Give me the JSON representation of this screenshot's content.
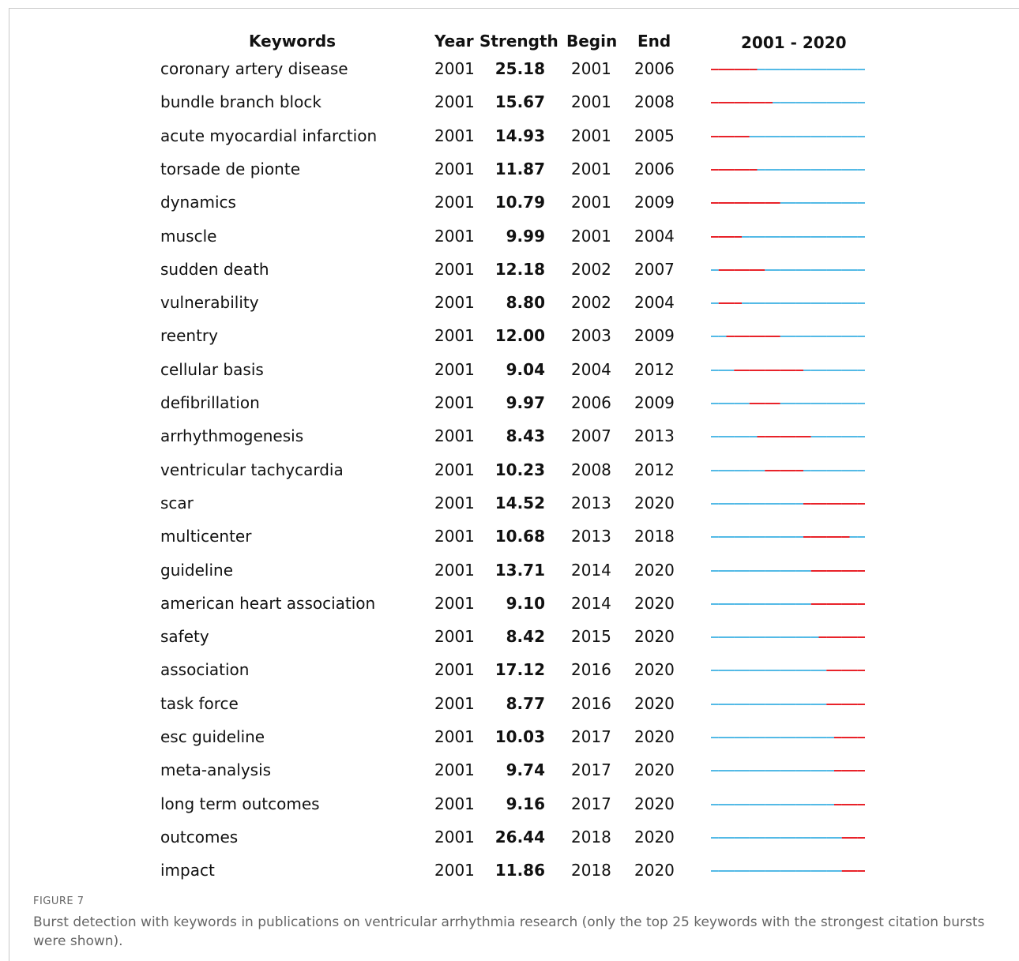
{
  "colors": {
    "burst": "#e8232a",
    "normal": "#29a8e0"
  },
  "headers": {
    "keywords": "Keywords",
    "year": "Year",
    "strength": "Strength",
    "begin": "Begin",
    "end": "End",
    "range": "2001 - 2020"
  },
  "chart_data": {
    "type": "table",
    "year_range": [
      2001,
      2020
    ],
    "rows": [
      {
        "keyword": "coronary artery disease",
        "year": "2001",
        "strength": "25.18",
        "begin": "2001",
        "end": "2006"
      },
      {
        "keyword": "bundle branch block",
        "year": "2001",
        "strength": "15.67",
        "begin": "2001",
        "end": "2008"
      },
      {
        "keyword": "acute myocardial infarction",
        "year": "2001",
        "strength": "14.93",
        "begin": "2001",
        "end": "2005"
      },
      {
        "keyword": "torsade de pionte",
        "year": "2001",
        "strength": "11.87",
        "begin": "2001",
        "end": "2006"
      },
      {
        "keyword": "dynamics",
        "year": "2001",
        "strength": "10.79",
        "begin": "2001",
        "end": "2009"
      },
      {
        "keyword": "muscle",
        "year": "2001",
        "strength": "9.99",
        "begin": "2001",
        "end": "2004"
      },
      {
        "keyword": "sudden death",
        "year": "2001",
        "strength": "12.18",
        "begin": "2002",
        "end": "2007"
      },
      {
        "keyword": "vulnerability",
        "year": "2001",
        "strength": "8.80",
        "begin": "2002",
        "end": "2004"
      },
      {
        "keyword": "reentry",
        "year": "2001",
        "strength": "12.00",
        "begin": "2003",
        "end": "2009"
      },
      {
        "keyword": "cellular basis",
        "year": "2001",
        "strength": "9.04",
        "begin": "2004",
        "end": "2012"
      },
      {
        "keyword": "defibrillation",
        "year": "2001",
        "strength": "9.97",
        "begin": "2006",
        "end": "2009"
      },
      {
        "keyword": "arrhythmogenesis",
        "year": "2001",
        "strength": "8.43",
        "begin": "2007",
        "end": "2013"
      },
      {
        "keyword": "ventricular tachycardia",
        "year": "2001",
        "strength": "10.23",
        "begin": "2008",
        "end": "2012"
      },
      {
        "keyword": "scar",
        "year": "2001",
        "strength": "14.52",
        "begin": "2013",
        "end": "2020"
      },
      {
        "keyword": "multicenter",
        "year": "2001",
        "strength": "10.68",
        "begin": "2013",
        "end": "2018"
      },
      {
        "keyword": "guideline",
        "year": "2001",
        "strength": "13.71",
        "begin": "2014",
        "end": "2020"
      },
      {
        "keyword": "american heart association",
        "year": "2001",
        "strength": "9.10",
        "begin": "2014",
        "end": "2020"
      },
      {
        "keyword": "safety",
        "year": "2001",
        "strength": "8.42",
        "begin": "2015",
        "end": "2020"
      },
      {
        "keyword": "association",
        "year": "2001",
        "strength": "17.12",
        "begin": "2016",
        "end": "2020"
      },
      {
        "keyword": "task force",
        "year": "2001",
        "strength": "8.77",
        "begin": "2016",
        "end": "2020"
      },
      {
        "keyword": "esc guideline",
        "year": "2001",
        "strength": "10.03",
        "begin": "2017",
        "end": "2020"
      },
      {
        "keyword": "meta-analysis",
        "year": "2001",
        "strength": "9.74",
        "begin": "2017",
        "end": "2020"
      },
      {
        "keyword": "long term outcomes",
        "year": "2001",
        "strength": "9.16",
        "begin": "2017",
        "end": "2020"
      },
      {
        "keyword": "outcomes",
        "year": "2001",
        "strength": "26.44",
        "begin": "2018",
        "end": "2020"
      },
      {
        "keyword": "impact",
        "year": "2001",
        "strength": "11.86",
        "begin": "2018",
        "end": "2020"
      }
    ]
  },
  "caption": {
    "label": "FIGURE 7",
    "text": "Burst detection with keywords in publications on ventricular arrhythmia research (only the top 25 keywords with the strongest citation bursts were shown)."
  }
}
